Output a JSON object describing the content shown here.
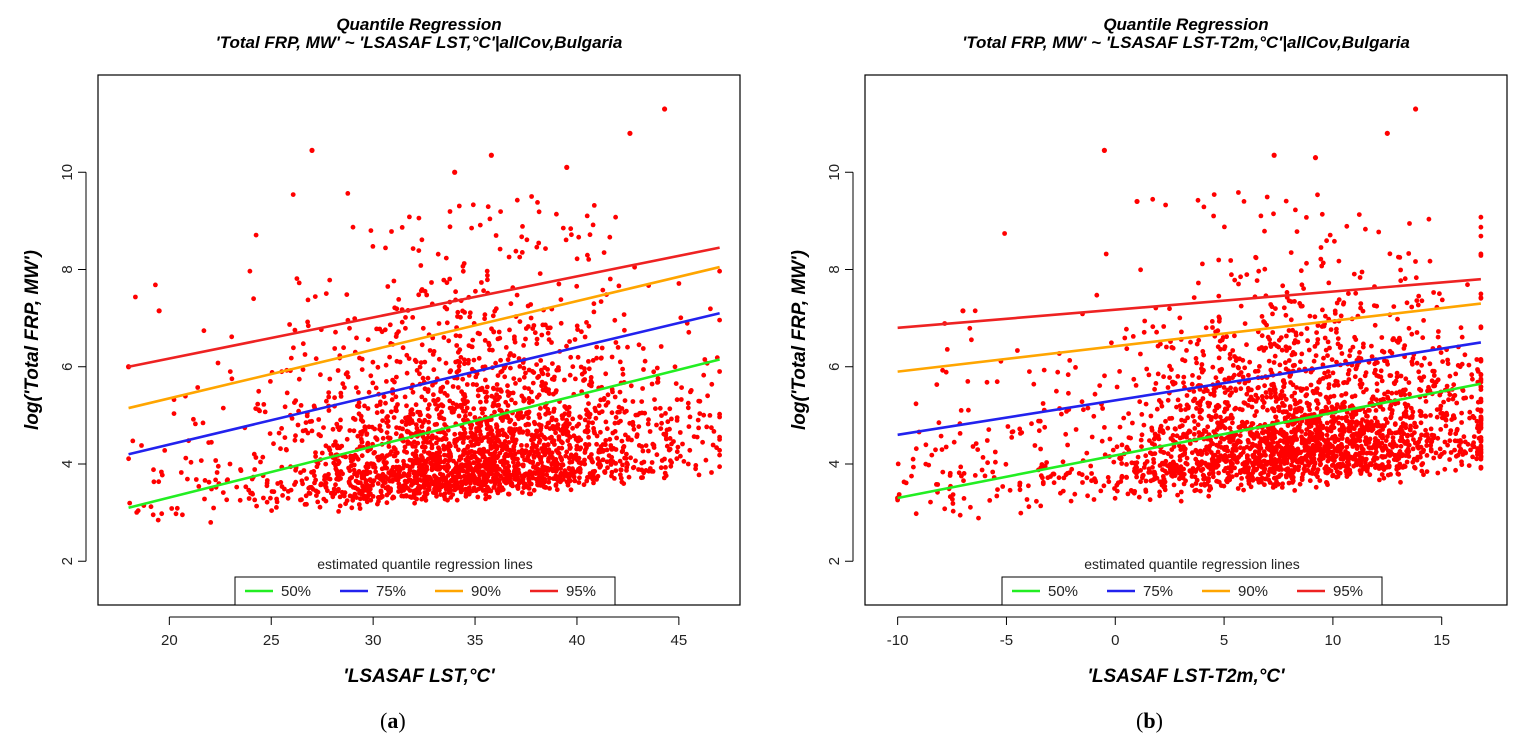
{
  "figure": {
    "caption_a": "a",
    "caption_b": "b"
  },
  "chart_data": [
    {
      "type": "scatter",
      "title": "Quantile Regression",
      "subtitle": "'Total FRP, MW' ~ 'LSASAF LST,°C'|allCov,Bulgaria",
      "xlabel": "'LSASAF LST,°C'",
      "ylabel": "log('Total FRP, MW')",
      "xlim": [
        16.5,
        48
      ],
      "ylim": [
        1.1,
        12
      ],
      "xticks": [
        20,
        25,
        30,
        35,
        40,
        45
      ],
      "yticks": [
        2,
        4,
        6,
        8,
        10
      ],
      "point_color": "#ff0000",
      "point_cloud": {
        "n": 2600,
        "seed": 17,
        "x_center": 35,
        "x_spread": 4.6,
        "x_range": [
          18,
          47
        ],
        "y_floor": 2.6,
        "y_base": 2.9,
        "y_slope": 0.035,
        "y_scale": 1.15
      },
      "outliers": [
        {
          "x": 44.3,
          "y": 11.3
        },
        {
          "x": 27.0,
          "y": 10.45
        },
        {
          "x": 35.8,
          "y": 10.35
        },
        {
          "x": 42.6,
          "y": 10.8
        },
        {
          "x": 34.0,
          "y": 10.0
        },
        {
          "x": 39.5,
          "y": 10.1
        },
        {
          "x": 19.5,
          "y": 7.15
        },
        {
          "x": 18.0,
          "y": 6.0
        }
      ],
      "legend": {
        "title": "estimated quantile regression lines",
        "position": "bottom-center"
      },
      "series": [
        {
          "name": "50%",
          "color": "#22ee22",
          "x": [
            18,
            47
          ],
          "y": [
            3.1,
            6.15
          ]
        },
        {
          "name": "75%",
          "color": "#2222ee",
          "x": [
            18,
            47
          ],
          "y": [
            4.2,
            7.1
          ]
        },
        {
          "name": "90%",
          "color": "#ffa500",
          "x": [
            18,
            47
          ],
          "y": [
            5.15,
            8.05
          ]
        },
        {
          "name": "95%",
          "color": "#ee2222",
          "x": [
            18,
            47
          ],
          "y": [
            6.0,
            8.45
          ]
        }
      ]
    },
    {
      "type": "scatter",
      "title": "Quantile Regression",
      "subtitle": "'Total FRP, MW' ~ 'LSASAF LST-T2m,°C'|allCov,Bulgaria",
      "xlabel": "'LSASAF LST-T2m,°C'",
      "ylabel": "log('Total FRP, MW')",
      "xlim": [
        -11.5,
        18
      ],
      "ylim": [
        1.1,
        12
      ],
      "xticks": [
        -10,
        -5,
        0,
        5,
        10,
        15
      ],
      "yticks": [
        2,
        4,
        6,
        8,
        10
      ],
      "point_color": "#ff0000",
      "point_cloud": {
        "n": 2600,
        "seed": 29,
        "x_center": 8.5,
        "x_spread": 4.4,
        "x_range": [
          -10,
          16.8
        ],
        "y_floor": 2.6,
        "y_base": 3.5,
        "y_slope": 0.04,
        "y_scale": 1.15
      },
      "outliers": [
        {
          "x": 13.8,
          "y": 11.3
        },
        {
          "x": -0.5,
          "y": 10.45
        },
        {
          "x": 12.5,
          "y": 10.8
        },
        {
          "x": 7.3,
          "y": 10.35
        },
        {
          "x": 9.2,
          "y": 10.3
        },
        {
          "x": 1.0,
          "y": 9.4
        },
        {
          "x": -7.0,
          "y": 7.15
        },
        {
          "x": -10.0,
          "y": 3.3
        }
      ],
      "legend": {
        "title": "estimated quantile regression lines",
        "position": "bottom-center"
      },
      "series": [
        {
          "name": "50%",
          "color": "#22ee22",
          "x": [
            -10,
            16.8
          ],
          "y": [
            3.3,
            5.65
          ]
        },
        {
          "name": "75%",
          "color": "#2222ee",
          "x": [
            -10,
            16.8
          ],
          "y": [
            4.6,
            6.5
          ]
        },
        {
          "name": "90%",
          "color": "#ffa500",
          "x": [
            -10,
            16.8
          ],
          "y": [
            5.9,
            7.3
          ]
        },
        {
          "name": "95%",
          "color": "#ee2222",
          "x": [
            -10,
            16.8
          ],
          "y": [
            6.8,
            7.8
          ]
        }
      ]
    }
  ]
}
